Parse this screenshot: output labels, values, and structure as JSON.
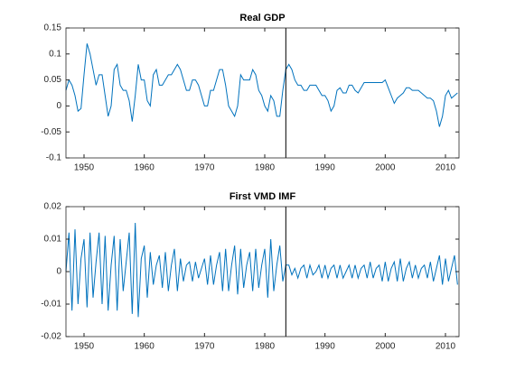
{
  "chart_data": [
    {
      "type": "line",
      "title": "Real GDP",
      "color": "#0072bd",
      "vline": 1983.5,
      "vline_color": "#000000",
      "xlim": [
        1947,
        2012.25
      ],
      "xticks": [
        1950,
        1960,
        1970,
        1980,
        1990,
        2000,
        2010
      ],
      "ylim": [
        -0.1,
        0.15
      ],
      "yticks": [
        -0.1,
        -0.05,
        0,
        0.05,
        0.1,
        0.15
      ],
      "grid": false,
      "x": [
        1947,
        1947.5,
        1948,
        1948.5,
        1949,
        1949.5,
        1950,
        1950.5,
        1951,
        1951.5,
        1952,
        1952.5,
        1953,
        1953.5,
        1954,
        1954.5,
        1955,
        1955.5,
        1956,
        1956.5,
        1957,
        1957.5,
        1958,
        1958.5,
        1959,
        1959.5,
        1960,
        1960.5,
        1961,
        1961.5,
        1962,
        1962.5,
        1963,
        1963.5,
        1964,
        1964.5,
        1965,
        1965.5,
        1966,
        1966.5,
        1967,
        1967.5,
        1968,
        1968.5,
        1969,
        1969.5,
        1970,
        1970.5,
        1971,
        1971.5,
        1972,
        1972.5,
        1973,
        1973.5,
        1974,
        1974.5,
        1975,
        1975.5,
        1976,
        1976.5,
        1977,
        1977.5,
        1978,
        1978.5,
        1979,
        1979.5,
        1980,
        1980.5,
        1981,
        1981.5,
        1982,
        1982.5,
        1983,
        1983.5,
        1984,
        1984.5,
        1985,
        1985.5,
        1986,
        1986.5,
        1987,
        1987.5,
        1988,
        1988.5,
        1989,
        1989.5,
        1990,
        1990.5,
        1991,
        1991.5,
        1992,
        1992.5,
        1993,
        1993.5,
        1994,
        1994.5,
        1995,
        1995.5,
        1996,
        1996.5,
        1997,
        1997.5,
        1998,
        1998.5,
        1999,
        1999.5,
        2000,
        2000.5,
        2001,
        2001.5,
        2002,
        2002.5,
        2003,
        2003.5,
        2004,
        2004.5,
        2005,
        2005.5,
        2006,
        2006.5,
        2007,
        2007.5,
        2008,
        2008.5,
        2009,
        2009.5,
        2010,
        2010.5,
        2011,
        2011.5,
        2012
      ],
      "values": [
        0.03,
        0.05,
        0.04,
        0.02,
        -0.01,
        -0.005,
        0.06,
        0.12,
        0.1,
        0.07,
        0.04,
        0.06,
        0.06,
        0.02,
        -0.02,
        0.0,
        0.07,
        0.08,
        0.04,
        0.03,
        0.03,
        0.01,
        -0.03,
        0.02,
        0.08,
        0.05,
        0.05,
        0.01,
        0.0,
        0.06,
        0.07,
        0.04,
        0.04,
        0.05,
        0.06,
        0.06,
        0.07,
        0.08,
        0.07,
        0.05,
        0.03,
        0.03,
        0.05,
        0.05,
        0.04,
        0.02,
        0.0,
        0.0,
        0.03,
        0.03,
        0.05,
        0.07,
        0.07,
        0.04,
        0.0,
        -0.01,
        -0.02,
        0.0,
        0.06,
        0.05,
        0.05,
        0.05,
        0.07,
        0.06,
        0.03,
        0.02,
        0.0,
        -0.01,
        0.02,
        0.01,
        -0.02,
        -0.02,
        0.03,
        0.07,
        0.08,
        0.07,
        0.05,
        0.04,
        0.04,
        0.03,
        0.03,
        0.04,
        0.04,
        0.04,
        0.03,
        0.02,
        0.02,
        0.01,
        -0.01,
        0.0,
        0.03,
        0.035,
        0.025,
        0.025,
        0.04,
        0.04,
        0.03,
        0.025,
        0.035,
        0.045,
        0.045,
        0.045,
        0.045,
        0.045,
        0.045,
        0.045,
        0.05,
        0.035,
        0.02,
        0.005,
        0.015,
        0.02,
        0.025,
        0.035,
        0.035,
        0.03,
        0.03,
        0.03,
        0.025,
        0.02,
        0.015,
        0.015,
        0.01,
        -0.01,
        -0.04,
        -0.02,
        0.02,
        0.03,
        0.015,
        0.02,
        0.025
      ]
    },
    {
      "type": "line",
      "title": "First VMD IMF",
      "color": "#0072bd",
      "vline": 1983.5,
      "vline_color": "#000000",
      "xlim": [
        1947,
        2012.25
      ],
      "xticks": [
        1950,
        1960,
        1970,
        1980,
        1990,
        2000,
        2010
      ],
      "ylim": [
        -0.02,
        0.02
      ],
      "yticks": [
        -0.02,
        -0.01,
        0,
        0.01,
        0.02
      ],
      "grid": false,
      "x": [
        1947,
        1947.5,
        1948,
        1948.5,
        1949,
        1949.5,
        1950,
        1950.5,
        1951,
        1951.5,
        1952,
        1952.5,
        1953,
        1953.5,
        1954,
        1954.5,
        1955,
        1955.5,
        1956,
        1956.5,
        1957,
        1957.5,
        1958,
        1958.5,
        1959,
        1959.5,
        1960,
        1960.5,
        1961,
        1961.5,
        1962,
        1962.5,
        1963,
        1963.5,
        1964,
        1964.5,
        1965,
        1965.5,
        1966,
        1966.5,
        1967,
        1967.5,
        1968,
        1968.5,
        1969,
        1969.5,
        1970,
        1970.5,
        1971,
        1971.5,
        1972,
        1972.5,
        1973,
        1973.5,
        1974,
        1974.5,
        1975,
        1975.5,
        1976,
        1976.5,
        1977,
        1977.5,
        1978,
        1978.5,
        1979,
        1979.5,
        1980,
        1980.5,
        1981,
        1981.5,
        1982,
        1982.5,
        1983,
        1983.5,
        1984,
        1984.5,
        1985,
        1985.5,
        1986,
        1986.5,
        1987,
        1987.5,
        1988,
        1988.5,
        1989,
        1989.5,
        1990,
        1990.5,
        1991,
        1991.5,
        1992,
        1992.5,
        1993,
        1993.5,
        1994,
        1994.5,
        1995,
        1995.5,
        1996,
        1996.5,
        1997,
        1997.5,
        1998,
        1998.5,
        1999,
        1999.5,
        2000,
        2000.5,
        2001,
        2001.5,
        2002,
        2002.5,
        2003,
        2003.5,
        2004,
        2004.5,
        2005,
        2005.5,
        2006,
        2006.5,
        2007,
        2007.5,
        2008,
        2008.5,
        2009,
        2009.5,
        2010,
        2010.5,
        2011,
        2011.5,
        2012
      ],
      "values": [
        0.0,
        0.012,
        -0.012,
        0.013,
        -0.01,
        0.004,
        0.01,
        -0.011,
        0.012,
        -0.008,
        0.003,
        0.012,
        -0.01,
        0.011,
        -0.012,
        0.002,
        0.011,
        -0.012,
        0.01,
        -0.006,
        0.003,
        0.012,
        -0.013,
        0.015,
        -0.014,
        0.004,
        0.008,
        -0.008,
        0.006,
        -0.004,
        0.002,
        0.005,
        -0.005,
        0.006,
        -0.006,
        0.002,
        0.007,
        -0.006,
        0.004,
        -0.003,
        0.002,
        0.003,
        -0.003,
        0.003,
        -0.002,
        0.001,
        0.004,
        -0.004,
        0.005,
        -0.004,
        0.002,
        0.006,
        -0.006,
        0.007,
        -0.006,
        0.002,
        0.008,
        -0.007,
        0.007,
        -0.005,
        0.002,
        0.006,
        -0.006,
        0.007,
        -0.005,
        0.002,
        0.007,
        -0.008,
        0.01,
        -0.006,
        0.002,
        0.008,
        -0.003,
        0.002,
        0.002,
        -0.001,
        0.001,
        -0.002,
        0.001,
        0.002,
        -0.002,
        0.002,
        -0.001,
        0.0,
        0.002,
        -0.002,
        0.002,
        -0.002,
        0.001,
        0.002,
        -0.002,
        0.002,
        -0.002,
        0.0,
        0.002,
        -0.002,
        0.002,
        -0.002,
        0.001,
        0.002,
        -0.002,
        0.003,
        -0.002,
        0.001,
        0.002,
        -0.003,
        0.003,
        -0.003,
        0.001,
        0.003,
        -0.003,
        0.004,
        -0.003,
        0.001,
        0.003,
        -0.002,
        0.002,
        -0.002,
        0.001,
        0.002,
        -0.002,
        0.003,
        -0.003,
        0.001,
        0.005,
        -0.004,
        0.004,
        -0.003,
        0.001,
        0.005,
        -0.004
      ]
    }
  ]
}
